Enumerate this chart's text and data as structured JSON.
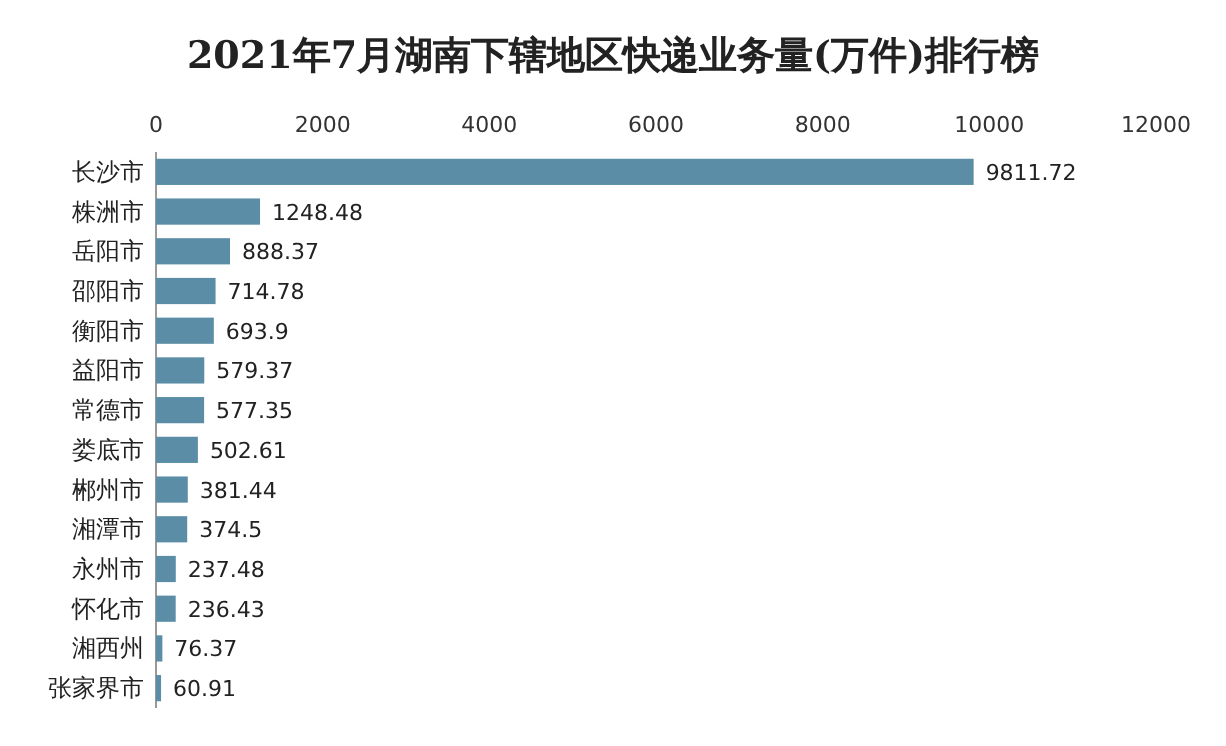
{
  "chart_data": {
    "type": "bar",
    "orientation": "horizontal",
    "title": "2021年7月湖南下辖地区快递业务量(万件)排行榜",
    "categories": [
      "长沙市",
      "株洲市",
      "岳阳市",
      "邵阳市",
      "衡阳市",
      "益阳市",
      "常德市",
      "娄底市",
      "郴州市",
      "湘潭市",
      "永州市",
      "怀化市",
      "湘西州",
      "张家界市"
    ],
    "values": [
      9811.72,
      1248.48,
      888.37,
      714.78,
      693.9,
      579.37,
      577.35,
      502.61,
      381.44,
      374.5,
      237.48,
      236.43,
      76.37,
      60.91
    ],
    "color": "#5b8ea6",
    "xlim": [
      0,
      12000
    ],
    "xticks": [
      0,
      2000,
      4000,
      6000,
      8000,
      10000,
      12000
    ],
    "data_labels": true
  }
}
